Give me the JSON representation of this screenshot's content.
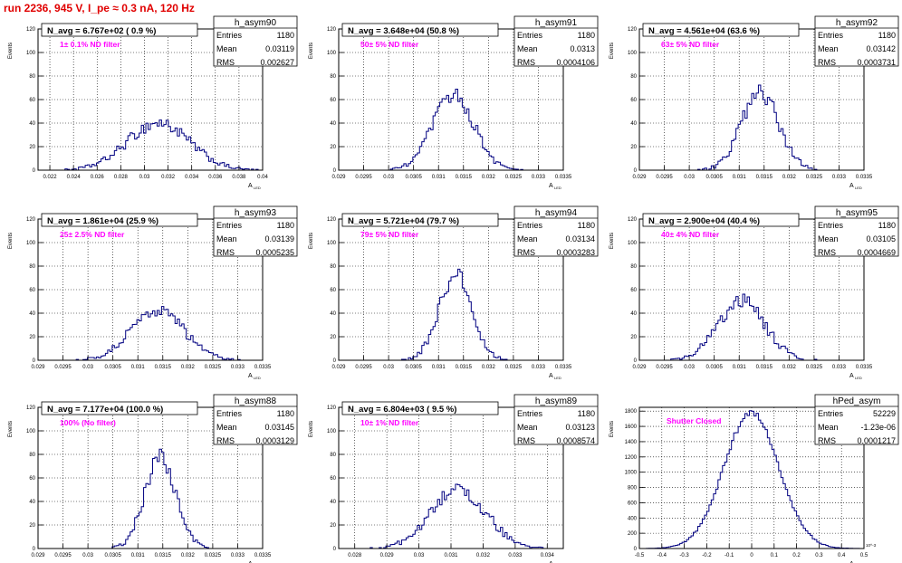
{
  "header": {
    "title": "run 2236,   945 V, I_pe ≈ 0.3 nA, 120 Hz",
    "title_color": "#e00000"
  },
  "colors": {
    "histogram": "#000080",
    "grid": "#000000",
    "axis": "#000000",
    "label_text": "#ff00ff",
    "nav_text": "#000000",
    "background": "#ffffff"
  },
  "chart_data": [
    {
      "type": "histogram",
      "stats_name": "h_asym90",
      "stats": {
        "entries": "1180",
        "mean": "0.03119",
        "rms": "0.002627"
      },
      "nav_label": "N_avg = 6.767e+02 ( 0.9 %)",
      "filter_label": "1± 0.1% ND filter",
      "ylabel": "Events",
      "xlabel": "A",
      "xlabel_sub": "LED",
      "x_range": [
        0.021,
        0.04
      ],
      "y_range": [
        0,
        120
      ],
      "x_ticks": [
        "0.022",
        "0.024",
        "0.026",
        "0.028",
        "0.03",
        "0.032",
        "0.034",
        "0.036",
        "0.038",
        "0.04"
      ],
      "y_ticks": [
        "0",
        "20",
        "40",
        "60",
        "80",
        "100",
        "120"
      ],
      "x_ticks_val": [
        0.022,
        0.024,
        0.026,
        0.028,
        0.03,
        0.032,
        0.034,
        0.036,
        0.038,
        0.04
      ],
      "y_ticks_val": [
        0,
        20,
        40,
        60,
        80,
        100,
        120
      ],
      "bins": {
        "mean": 0.03119,
        "sigma": 0.002627,
        "peak": 40,
        "count": 100
      },
      "grid": true
    },
    {
      "type": "histogram",
      "stats_name": "h_asym91",
      "stats": {
        "entries": "1180",
        "mean": "0.0313",
        "rms": "0.0004106"
      },
      "nav_label": "N_avg = 3.648e+04 (50.8 %)",
      "filter_label": "50± 5% ND filter",
      "ylabel": "Events",
      "xlabel": "A",
      "xlabel_sub": "LED",
      "x_range": [
        0.029,
        0.0335
      ],
      "y_range": [
        0,
        120
      ],
      "x_ticks": [
        "0.029",
        "0.0295",
        "0.03",
        "0.0305",
        "0.031",
        "0.0315",
        "0.032",
        "0.0325",
        "0.033",
        "0.0335"
      ],
      "y_ticks": [
        "0",
        "20",
        "40",
        "60",
        "80",
        "100",
        "120"
      ],
      "x_ticks_val": [
        0.029,
        0.0295,
        0.03,
        0.0305,
        0.031,
        0.0315,
        0.032,
        0.0325,
        0.033,
        0.0335
      ],
      "y_ticks_val": [
        0,
        20,
        40,
        60,
        80,
        100,
        120
      ],
      "bins": {
        "mean": 0.0313,
        "sigma": 0.0004106,
        "peak": 64,
        "count": 100
      },
      "grid": true
    },
    {
      "type": "histogram",
      "stats_name": "h_asym92",
      "stats": {
        "entries": "1180",
        "mean": "0.03142",
        "rms": "0.0003731"
      },
      "nav_label": "N_avg = 4.561e+04 (63.6 %)",
      "filter_label": "63± 5% ND filter",
      "ylabel": "Events",
      "xlabel": "A",
      "xlabel_sub": "LED",
      "x_range": [
        0.029,
        0.0335
      ],
      "y_range": [
        0,
        120
      ],
      "x_ticks": [
        "0.029",
        "0.0295",
        "0.03",
        "0.0305",
        "0.031",
        "0.0315",
        "0.032",
        "0.0325",
        "0.033",
        "0.0335"
      ],
      "y_ticks": [
        "0",
        "20",
        "40",
        "60",
        "80",
        "100",
        "120"
      ],
      "x_ticks_val": [
        0.029,
        0.0295,
        0.03,
        0.0305,
        0.031,
        0.0315,
        0.032,
        0.0325,
        0.033,
        0.0335
      ],
      "y_ticks_val": [
        0,
        20,
        40,
        60,
        80,
        100,
        120
      ],
      "bins": {
        "mean": 0.03142,
        "sigma": 0.0003731,
        "peak": 66,
        "count": 100
      },
      "grid": true
    },
    {
      "type": "histogram",
      "stats_name": "h_asym93",
      "stats": {
        "entries": "1180",
        "mean": "0.03139",
        "rms": "0.0005235"
      },
      "nav_label": "N_avg = 1.861e+04 (25.9 %)",
      "filter_label": "25± 2.5% ND filter",
      "ylabel": "Events",
      "xlabel": "A",
      "xlabel_sub": "LED",
      "x_range": [
        0.029,
        0.0335
      ],
      "y_range": [
        0,
        120
      ],
      "x_ticks": [
        "0.029",
        "0.0295",
        "0.03",
        "0.0305",
        "0.031",
        "0.0315",
        "0.032",
        "0.0325",
        "0.033",
        "0.0335"
      ],
      "y_ticks": [
        "0",
        "20",
        "40",
        "60",
        "80",
        "100",
        "120"
      ],
      "x_ticks_val": [
        0.029,
        0.0295,
        0.03,
        0.0305,
        0.031,
        0.0315,
        0.032,
        0.0325,
        0.033,
        0.0335
      ],
      "y_ticks_val": [
        0,
        20,
        40,
        60,
        80,
        100,
        120
      ],
      "bins": {
        "mean": 0.03139,
        "sigma": 0.0005235,
        "peak": 43,
        "count": 100
      },
      "grid": true
    },
    {
      "type": "histogram",
      "stats_name": "h_asym94",
      "stats": {
        "entries": "1180",
        "mean": "0.03134",
        "rms": "0.0003283"
      },
      "nav_label": "N_avg = 5.721e+04 (79.7 %)",
      "filter_label": "79± 5% ND filter",
      "ylabel": "Events",
      "xlabel": "A",
      "xlabel_sub": "LED",
      "x_range": [
        0.029,
        0.0335
      ],
      "y_range": [
        0,
        120
      ],
      "x_ticks": [
        "0.029",
        "0.0295",
        "0.03",
        "0.0305",
        "0.031",
        "0.0315",
        "0.032",
        "0.0325",
        "0.033",
        "0.0335"
      ],
      "y_ticks": [
        "0",
        "20",
        "40",
        "60",
        "80",
        "100",
        "120"
      ],
      "x_ticks_val": [
        0.029,
        0.0295,
        0.03,
        0.0305,
        0.031,
        0.0315,
        0.032,
        0.0325,
        0.033,
        0.0335
      ],
      "y_ticks_val": [
        0,
        20,
        40,
        60,
        80,
        100,
        120
      ],
      "bins": {
        "mean": 0.03134,
        "sigma": 0.0003283,
        "peak": 72,
        "count": 100
      },
      "grid": true
    },
    {
      "type": "histogram",
      "stats_name": "h_asym95",
      "stats": {
        "entries": "1180",
        "mean": "0.03105",
        "rms": "0.0004669"
      },
      "nav_label": "N_avg = 2.900e+04 (40.4 %)",
      "filter_label": "40± 4% ND filter",
      "ylabel": "Events",
      "xlabel": "A",
      "xlabel_sub": "LED",
      "x_range": [
        0.029,
        0.0335
      ],
      "y_range": [
        0,
        120
      ],
      "x_ticks": [
        "0.029",
        "0.0295",
        "0.03",
        "0.0305",
        "0.031",
        "0.0315",
        "0.032",
        "0.0325",
        "0.033",
        "0.0335"
      ],
      "y_ticks": [
        "0",
        "20",
        "40",
        "60",
        "80",
        "100",
        "120"
      ],
      "x_ticks_val": [
        0.029,
        0.0295,
        0.03,
        0.0305,
        0.031,
        0.0315,
        0.032,
        0.0325,
        0.033,
        0.0335
      ],
      "y_ticks_val": [
        0,
        20,
        40,
        60,
        80,
        100,
        120
      ],
      "bins": {
        "mean": 0.03105,
        "sigma": 0.0004669,
        "peak": 50,
        "count": 100
      },
      "grid": true
    },
    {
      "type": "histogram",
      "stats_name": "h_asym88",
      "stats": {
        "entries": "1180",
        "mean": "0.03145",
        "rms": "0.0003129"
      },
      "nav_label": "N_avg = 7.177e+04 (100.0 %)",
      "filter_label": "100% (No filter)",
      "ylabel": "Events",
      "xlabel": "A",
      "xlabel_sub": "LED",
      "x_range": [
        0.029,
        0.0335
      ],
      "y_range": [
        0,
        120
      ],
      "x_ticks": [
        "0.029",
        "0.0295",
        "0.03",
        "0.0305",
        "0.031",
        "0.0315",
        "0.032",
        "0.0325",
        "0.033",
        "0.0335"
      ],
      "y_ticks": [
        "0",
        "20",
        "40",
        "60",
        "80",
        "100",
        "120"
      ],
      "x_ticks_val": [
        0.029,
        0.0295,
        0.03,
        0.0305,
        0.031,
        0.0315,
        0.032,
        0.0325,
        0.033,
        0.0335
      ],
      "y_ticks_val": [
        0,
        20,
        40,
        60,
        80,
        100,
        120
      ],
      "bins": {
        "mean": 0.03145,
        "sigma": 0.0003129,
        "peak": 77,
        "count": 100
      },
      "grid": true
    },
    {
      "type": "histogram",
      "stats_name": "h_asym89",
      "stats": {
        "entries": "1180",
        "mean": "0.03123",
        "rms": "0.0008574"
      },
      "nav_label": "N_avg = 6.804e+03 ( 9.5 %)",
      "filter_label": "10± 1% ND filter",
      "ylabel": "Events",
      "xlabel": "A",
      "xlabel_sub": "LED",
      "x_range": [
        0.0275,
        0.0345
      ],
      "y_range": [
        0,
        120
      ],
      "x_ticks": [
        "0.028",
        "0.029",
        "0.03",
        "0.031",
        "0.032",
        "0.033",
        "0.034"
      ],
      "y_ticks": [
        "0",
        "20",
        "40",
        "60",
        "80",
        "100",
        "120"
      ],
      "x_ticks_val": [
        0.028,
        0.029,
        0.03,
        0.031,
        0.032,
        0.033,
        0.034
      ],
      "y_ticks_val": [
        0,
        20,
        40,
        60,
        80,
        100,
        120
      ],
      "bins": {
        "mean": 0.03123,
        "sigma": 0.0008574,
        "peak": 50,
        "count": 100
      },
      "grid": true
    },
    {
      "type": "histogram",
      "stats_name": "hPed_asym",
      "stats": {
        "entries": "52229",
        "mean": "-1.23e-06",
        "rms": "0.0001217"
      },
      "nav_label": "",
      "filter_label": "Shutter Closed",
      "ylabel": "Events",
      "xlabel": "A",
      "xlabel_sub": "LED",
      "x_exponent": "10^-3",
      "x_range": [
        -0.5,
        0.5
      ],
      "y_range": [
        0,
        1850
      ],
      "x_ticks": [
        "-0.5",
        "-0.4",
        "-0.3",
        "-0.2",
        "-0.1",
        "0",
        "0.1",
        "0.2",
        "0.3",
        "0.4",
        "0.5"
      ],
      "y_ticks": [
        "0",
        "200",
        "400",
        "600",
        "800",
        "1000",
        "1200",
        "1400",
        "1600",
        "1800"
      ],
      "x_ticks_val": [
        -0.5,
        -0.4,
        -0.3,
        -0.2,
        -0.1,
        0,
        0.1,
        0.2,
        0.3,
        0.4,
        0.5
      ],
      "y_ticks_val": [
        0,
        200,
        400,
        600,
        800,
        1000,
        1200,
        1400,
        1600,
        1800
      ],
      "bins": {
        "mean": -0.00123,
        "sigma": 0.1217,
        "peak": 1780,
        "count": 100
      },
      "grid": true
    }
  ]
}
